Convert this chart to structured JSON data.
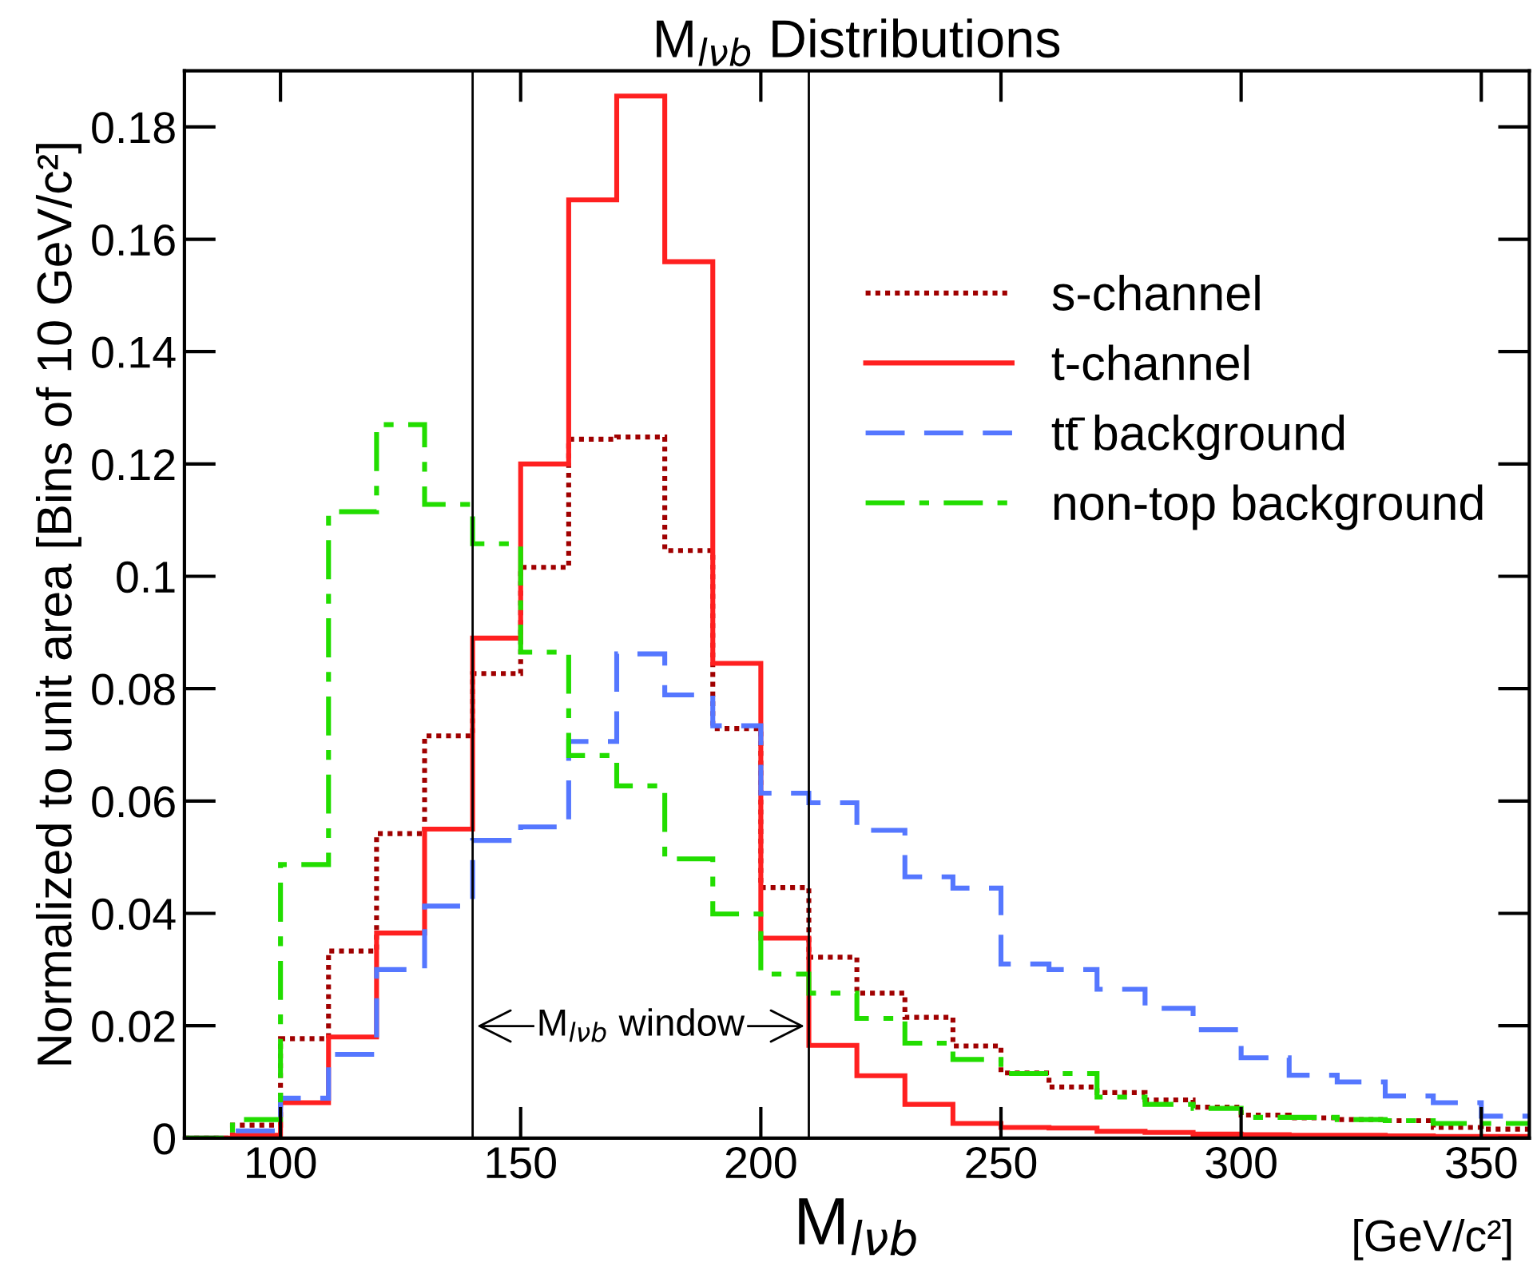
{
  "chart_data": {
    "type": "histogram",
    "title": "M$_{lνb}$ Distributions",
    "xlabel": "M$_{lνb}$",
    "ylabel": "Normalized to unit area [Bins of 10 GeV/c²]",
    "bins": [
      80,
      90,
      100,
      110,
      120,
      130,
      140,
      150,
      160,
      170,
      180,
      190,
      200,
      210,
      220,
      230,
      240,
      250,
      260,
      270,
      280,
      290,
      300,
      310,
      320,
      330,
      340,
      350,
      360
    ],
    "series": [
      {
        "name": "s-channel",
        "color": "#a00000",
        "line_style": "dotted",
        "values": [
          0,
          0.0023,
          0.0177,
          0.0333,
          0.0542,
          0.0716,
          0.0827,
          0.1016,
          0.1244,
          0.1248,
          0.1046,
          0.0729,
          0.0446,
          0.0322,
          0.0258,
          0.0215,
          0.0164,
          0.0116,
          0.0091,
          0.0081,
          0.0068,
          0.0055,
          0.0041,
          0.0036,
          0.0033,
          0.0031,
          0.0019,
          0.0016
        ]
      },
      {
        "name": "t-channel",
        "color": "#ff2020",
        "line_style": "solid",
        "values": [
          0,
          0.0005,
          0.0063,
          0.018,
          0.0365,
          0.055,
          0.089,
          0.12,
          0.167,
          0.1855,
          0.156,
          0.0845,
          0.0356,
          0.0165,
          0.0111,
          0.006,
          0.0026,
          0.0019,
          0.0018,
          0.0012,
          0.001,
          0.0007,
          0.0006,
          0.0005,
          0.0005,
          0.0004,
          0.0003,
          0.0003
        ]
      },
      {
        "name": "tt̄ background",
        "color": "#5577ff",
        "line_style": "dashed",
        "values": [
          0,
          0.0013,
          0.0071,
          0.0149,
          0.03,
          0.0413,
          0.053,
          0.0554,
          0.0706,
          0.0862,
          0.0789,
          0.0734,
          0.0614,
          0.0597,
          0.0548,
          0.0465,
          0.0445,
          0.031,
          0.03,
          0.0265,
          0.0231,
          0.0193,
          0.0143,
          0.0112,
          0.01,
          0.0075,
          0.0063,
          0.0039
        ]
      },
      {
        "name": "non-top background",
        "color": "#22dd00",
        "line_style": "dashdot",
        "values": [
          0,
          0.0033,
          0.0487,
          0.1115,
          0.127,
          0.1128,
          0.1058,
          0.0865,
          0.0681,
          0.0627,
          0.0497,
          0.0399,
          0.0292,
          0.0258,
          0.0213,
          0.0169,
          0.014,
          0.0115,
          0.0115,
          0.0073,
          0.006,
          0.0053,
          0.0037,
          0.0037,
          0.0033,
          0.0031,
          0.0026,
          0.0026
        ]
      }
    ],
    "xlim": [
      80,
      360
    ],
    "xticks": [
      100,
      150,
      200,
      250,
      300,
      350
    ],
    "ylim": [
      0,
      0.19
    ],
    "yticks": [
      0,
      0.02,
      0.04,
      0.06,
      0.08,
      0.1,
      0.12,
      0.14,
      0.16,
      0.18
    ],
    "ref_lines": [
      {
        "axis": "x",
        "value": 140,
        "label": null
      },
      {
        "axis": "x",
        "value": 210,
        "label": null
      }
    ],
    "annotations": [
      "M$_{lνb}$ window",
      "[GeV/c²]"
    ],
    "legend": "top right",
    "grid": false
  }
}
